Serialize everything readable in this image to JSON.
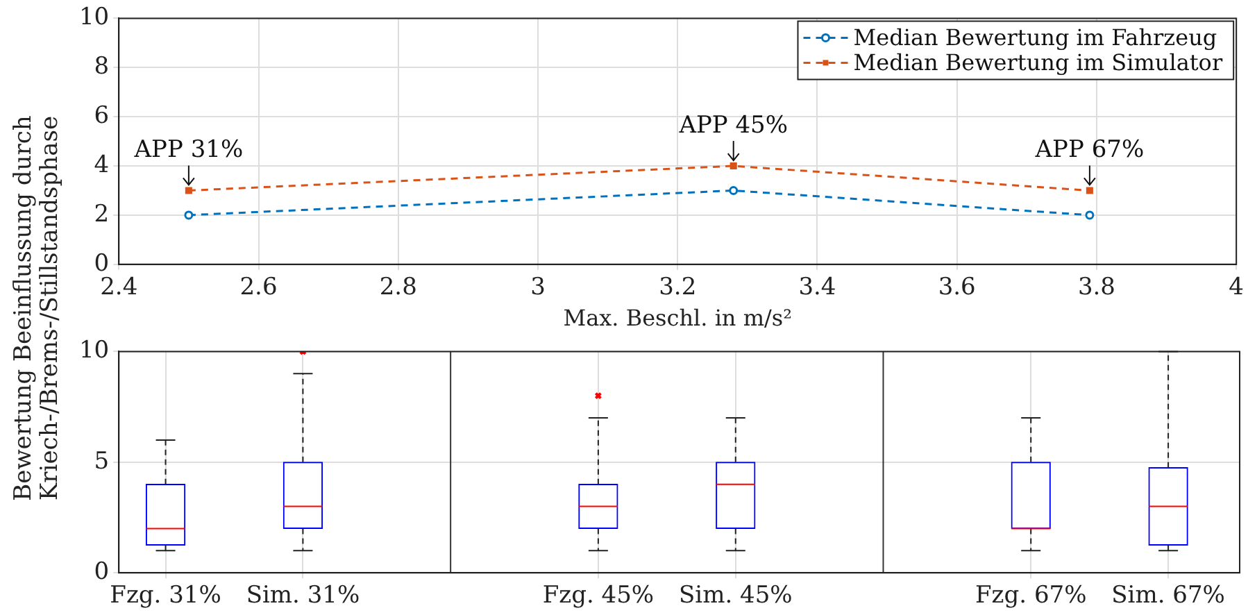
{
  "chart_data": [
    {
      "type": "line",
      "xlabel": "Max. Beschl. in m/s²",
      "ylabel": "Bewertung Beeinflussung durch Kriech-/Brems-/Stillstandsphase",
      "x": [
        2.5,
        3.28,
        3.79
      ],
      "series": [
        {
          "name": "Median Bewertung im Fahrzeug",
          "color": "#0072bd",
          "values": [
            2,
            3,
            2
          ],
          "marker": "circle"
        },
        {
          "name": "Median Bewertung im Simulator",
          "color": "#d95319",
          "values": [
            3,
            4,
            3
          ],
          "marker": "square"
        }
      ],
      "line_style": "dashed",
      "xlim": [
        2.4,
        4
      ],
      "xticks": [
        2.4,
        2.6,
        2.8,
        3,
        3.2,
        3.4,
        3.6,
        3.8,
        4
      ],
      "ylim": [
        0,
        10
      ],
      "yticks": [
        0,
        2,
        4,
        6,
        8,
        10
      ],
      "grid": true,
      "legend": "top right",
      "annotations": [
        {
          "text": "APP 31%",
          "x": 2.5,
          "y": 3
        },
        {
          "text": "APP 45%",
          "x": 3.28,
          "y": 4
        },
        {
          "text": "APP 67%",
          "x": 3.79,
          "y": 3
        }
      ]
    },
    {
      "type": "box",
      "categories": [
        "Fzg. 31%",
        "Sim. 31%",
        "Fzg. 45%",
        "Sim. 45%",
        "Fzg. 67%",
        "Sim. 67%"
      ],
      "boxes": [
        {
          "low": 1,
          "q1": 1.25,
          "median": 2,
          "q3": 4,
          "high": 6
        },
        {
          "low": 1,
          "q1": 2,
          "median": 3,
          "q3": 5,
          "high": 9,
          "outliers": [
            10
          ]
        },
        {
          "low": 1,
          "q1": 2,
          "median": 3,
          "q3": 4,
          "high": 7,
          "outliers": [
            8
          ]
        },
        {
          "low": 1,
          "q1": 2,
          "median": 4,
          "q3": 5,
          "high": 7
        },
        {
          "low": 1,
          "q1": 2,
          "median": 2,
          "q3": 5,
          "high": 7
        },
        {
          "low": 1,
          "q1": 1.25,
          "median": 3,
          "q3": 4.75,
          "high": 10
        }
      ],
      "color": "#0000ff",
      "ylim": [
        0,
        10
      ],
      "yticks": [
        0,
        5,
        10
      ],
      "grid": true
    }
  ]
}
